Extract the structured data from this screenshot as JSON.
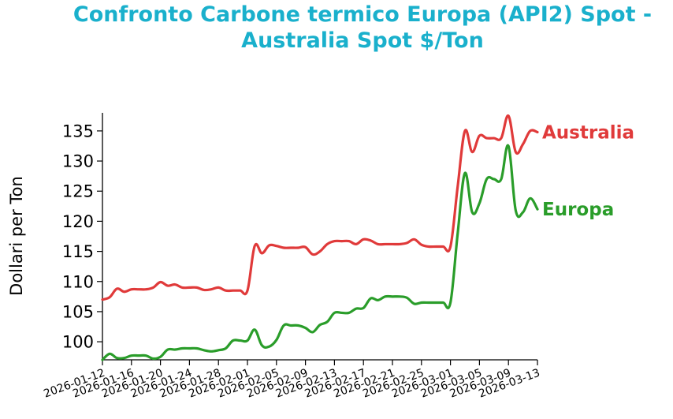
{
  "colors": {
    "title": "#1ab0cc",
    "australia": "#e03a3a",
    "europa": "#2a9d2a",
    "axis": "#000000"
  },
  "chart_data": {
    "type": "line",
    "title_lines": [
      "Confronto Carbone termico Europa (API2) Spot -",
      "Australia Spot $/Ton"
    ],
    "ylabel": "Dollari per Ton",
    "xlabel": "",
    "ylim": [
      97,
      138
    ],
    "yticks": [
      100,
      105,
      110,
      115,
      120,
      125,
      130,
      135
    ],
    "xlim": [
      "2026-01-12",
      "2026-03-13"
    ],
    "xticks": [
      "2026-01-12",
      "2026-01-16",
      "2026-01-20",
      "2026-01-24",
      "2026-01-28",
      "2026-02-01",
      "2026-02-05",
      "2026-02-09",
      "2026-02-13",
      "2026-02-17",
      "2026-02-21",
      "2026-02-25",
      "2026-03-01",
      "2026-03-05",
      "2026-03-09",
      "2026-03-13"
    ],
    "grid": false,
    "legend": "inline labels at line ends",
    "series": [
      {
        "name": "Australia",
        "color_key": "australia",
        "points": [
          [
            "2026-01-12",
            107.0
          ],
          [
            "2026-01-13",
            107.4
          ],
          [
            "2026-01-14",
            108.8
          ],
          [
            "2026-01-15",
            108.3
          ],
          [
            "2026-01-16",
            108.7
          ],
          [
            "2026-01-17",
            108.7
          ],
          [
            "2026-01-18",
            108.7
          ],
          [
            "2026-01-19",
            109.0
          ],
          [
            "2026-01-20",
            109.9
          ],
          [
            "2026-01-21",
            109.3
          ],
          [
            "2026-01-22",
            109.5
          ],
          [
            "2026-01-23",
            109.0
          ],
          [
            "2026-01-24",
            109.0
          ],
          [
            "2026-01-25",
            109.0
          ],
          [
            "2026-01-26",
            108.6
          ],
          [
            "2026-01-27",
            108.7
          ],
          [
            "2026-01-28",
            109.0
          ],
          [
            "2026-01-29",
            108.5
          ],
          [
            "2026-01-30",
            108.5
          ],
          [
            "2026-01-31",
            108.5
          ],
          [
            "2026-02-01",
            108.5
          ],
          [
            "2026-02-02",
            115.9
          ],
          [
            "2026-02-03",
            114.7
          ],
          [
            "2026-02-04",
            116.0
          ],
          [
            "2026-02-05",
            115.9
          ],
          [
            "2026-02-06",
            115.6
          ],
          [
            "2026-02-07",
            115.6
          ],
          [
            "2026-02-08",
            115.6
          ],
          [
            "2026-02-09",
            115.7
          ],
          [
            "2026-02-10",
            114.5
          ],
          [
            "2026-02-11",
            115.0
          ],
          [
            "2026-02-12",
            116.2
          ],
          [
            "2026-02-13",
            116.7
          ],
          [
            "2026-02-14",
            116.7
          ],
          [
            "2026-02-15",
            116.7
          ],
          [
            "2026-02-16",
            116.2
          ],
          [
            "2026-02-17",
            117.0
          ],
          [
            "2026-02-18",
            116.8
          ],
          [
            "2026-02-19",
            116.2
          ],
          [
            "2026-02-20",
            116.2
          ],
          [
            "2026-02-21",
            116.2
          ],
          [
            "2026-02-22",
            116.2
          ],
          [
            "2026-02-23",
            116.4
          ],
          [
            "2026-02-24",
            117.0
          ],
          [
            "2026-02-25",
            116.1
          ],
          [
            "2026-02-26",
            115.8
          ],
          [
            "2026-02-27",
            115.8
          ],
          [
            "2026-02-28",
            115.8
          ],
          [
            "2026-03-01",
            115.8
          ],
          [
            "2026-03-02",
            125.8
          ],
          [
            "2026-03-03",
            135.0
          ],
          [
            "2026-03-04",
            131.5
          ],
          [
            "2026-03-05",
            134.2
          ],
          [
            "2026-03-06",
            133.8
          ],
          [
            "2026-03-07",
            133.8
          ],
          [
            "2026-03-08",
            133.8
          ],
          [
            "2026-03-09",
            137.5
          ],
          [
            "2026-03-10",
            131.5
          ],
          [
            "2026-03-11",
            132.8
          ],
          [
            "2026-03-12",
            135.0
          ],
          [
            "2026-03-13",
            134.8
          ]
        ]
      },
      {
        "name": "Europa",
        "color_key": "europa",
        "points": [
          [
            "2026-01-12",
            97.0
          ],
          [
            "2026-01-13",
            98.0
          ],
          [
            "2026-01-14",
            97.3
          ],
          [
            "2026-01-15",
            97.3
          ],
          [
            "2026-01-16",
            97.7
          ],
          [
            "2026-01-17",
            97.7
          ],
          [
            "2026-01-18",
            97.7
          ],
          [
            "2026-01-19",
            97.2
          ],
          [
            "2026-01-20",
            97.5
          ],
          [
            "2026-01-21",
            98.7
          ],
          [
            "2026-01-22",
            98.7
          ],
          [
            "2026-01-23",
            98.9
          ],
          [
            "2026-01-24",
            98.9
          ],
          [
            "2026-01-25",
            98.9
          ],
          [
            "2026-01-26",
            98.6
          ],
          [
            "2026-01-27",
            98.4
          ],
          [
            "2026-01-28",
            98.6
          ],
          [
            "2026-01-29",
            98.9
          ],
          [
            "2026-01-30",
            100.2
          ],
          [
            "2026-01-31",
            100.2
          ],
          [
            "2026-02-01",
            100.2
          ],
          [
            "2026-02-02",
            102.0
          ],
          [
            "2026-02-03",
            99.4
          ],
          [
            "2026-02-04",
            99.2
          ],
          [
            "2026-02-05",
            100.3
          ],
          [
            "2026-02-06",
            102.7
          ],
          [
            "2026-02-07",
            102.7
          ],
          [
            "2026-02-08",
            102.7
          ],
          [
            "2026-02-09",
            102.3
          ],
          [
            "2026-02-10",
            101.6
          ],
          [
            "2026-02-11",
            102.8
          ],
          [
            "2026-02-12",
            103.3
          ],
          [
            "2026-02-13",
            104.8
          ],
          [
            "2026-02-14",
            104.8
          ],
          [
            "2026-02-15",
            104.8
          ],
          [
            "2026-02-16",
            105.5
          ],
          [
            "2026-02-17",
            105.6
          ],
          [
            "2026-02-18",
            107.2
          ],
          [
            "2026-02-19",
            106.9
          ],
          [
            "2026-02-20",
            107.5
          ],
          [
            "2026-02-21",
            107.5
          ],
          [
            "2026-02-22",
            107.5
          ],
          [
            "2026-02-23",
            107.3
          ],
          [
            "2026-02-24",
            106.3
          ],
          [
            "2026-02-25",
            106.5
          ],
          [
            "2026-02-26",
            106.5
          ],
          [
            "2026-02-27",
            106.5
          ],
          [
            "2026-02-28",
            106.5
          ],
          [
            "2026-03-01",
            106.5
          ],
          [
            "2026-03-02",
            118.0
          ],
          [
            "2026-03-03",
            128.0
          ],
          [
            "2026-03-04",
            121.5
          ],
          [
            "2026-03-05",
            123.0
          ],
          [
            "2026-03-06",
            127.0
          ],
          [
            "2026-03-07",
            127.0
          ],
          [
            "2026-03-08",
            127.0
          ],
          [
            "2026-03-09",
            132.5
          ],
          [
            "2026-03-10",
            121.8
          ],
          [
            "2026-03-11",
            121.5
          ],
          [
            "2026-03-12",
            123.8
          ],
          [
            "2026-03-13",
            122.0
          ]
        ]
      }
    ]
  }
}
